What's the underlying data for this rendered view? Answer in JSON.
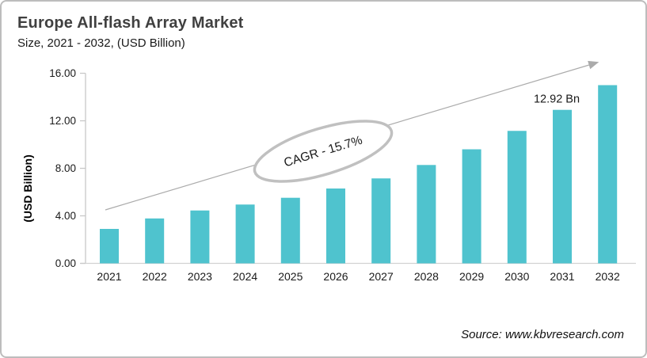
{
  "header": {
    "title": "Europe All-flash Array Market",
    "subtitle": "Size, 2021 - 2032, (USD Billion)"
  },
  "source": "Source: www.kbvresearch.com",
  "colors": {
    "bar": "#4fc3ce",
    "axis": "#c8c8c8",
    "baseline": "#d2d2d2",
    "arrow": "#ababab",
    "ellipse_stroke": "#c0c0c0",
    "ellipse_fill": "#ffffff",
    "title": "#404040",
    "text": "#1a1a1a"
  },
  "chart_data": {
    "type": "bar",
    "title": "Europe All-flash Array Market",
    "subtitle": "Size, 2021 - 2032, (USD Billion)",
    "categories": [
      "2021",
      "2022",
      "2023",
      "2024",
      "2025",
      "2026",
      "2027",
      "2028",
      "2029",
      "2030",
      "2031",
      "2032"
    ],
    "values": [
      2.9,
      3.78,
      4.45,
      4.95,
      5.52,
      6.3,
      7.15,
      8.28,
      9.6,
      11.15,
      12.92,
      15.0
    ],
    "xlabel": "",
    "ylabel": "(USD Billion)",
    "ylim": [
      0,
      16
    ],
    "y_ticks": [
      0,
      4,
      8,
      12,
      16
    ],
    "y_tick_labels": [
      "0.00",
      "4.00",
      "8.00",
      "12.00",
      "16.00"
    ],
    "grid": false,
    "legend": false,
    "annotations": {
      "cagr_label": "CAGR - 15.7%",
      "point_label": {
        "category": "2031",
        "text": "12.92 Bn"
      },
      "trend_arrow": true
    }
  }
}
